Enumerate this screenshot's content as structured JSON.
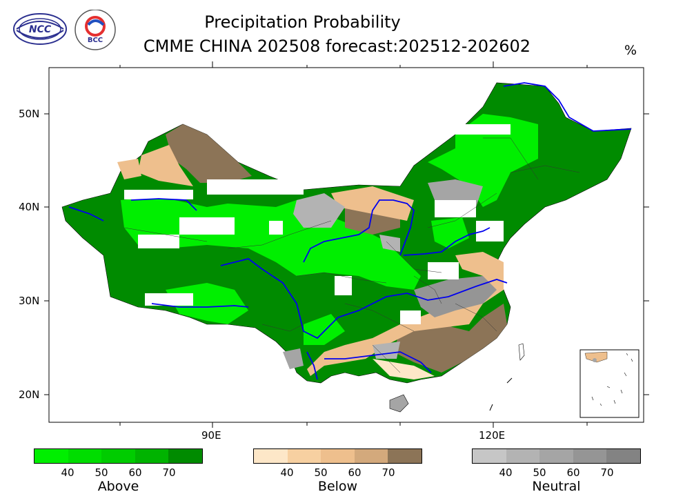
{
  "header": {
    "title_line1": "Precipitation Probability",
    "title_line2": "CMME CHINA 202508 forecast:202512-202602",
    "unit": "%"
  },
  "logos": {
    "ncc_text": "NCC",
    "bcc_text": "BCC",
    "ncc_icon": "ncc-logo-icon",
    "bcc_icon": "bcc-logo-icon"
  },
  "axes": {
    "lat_labels": [
      "50N",
      "40N",
      "30N",
      "20N"
    ],
    "lon_labels": [
      "90E",
      "120E"
    ]
  },
  "legends": [
    {
      "name": "Above",
      "ticks": [
        "40",
        "50",
        "60",
        "70"
      ],
      "colors": [
        "#00ef00",
        "#00dd00",
        "#00cc00",
        "#00b300",
        "#008b00"
      ]
    },
    {
      "name": "Below",
      "ticks": [
        "40",
        "50",
        "60",
        "70"
      ],
      "colors": [
        "#fde7c8",
        "#f7d0a1",
        "#eebf8d",
        "#d3a97c",
        "#8c7457"
      ]
    },
    {
      "name": "Neutral",
      "ticks": [
        "40",
        "50",
        "60",
        "70"
      ],
      "colors": [
        "#c6c6c6",
        "#b3b3b3",
        "#a5a5a5",
        "#959595",
        "#838383"
      ]
    }
  ]
}
